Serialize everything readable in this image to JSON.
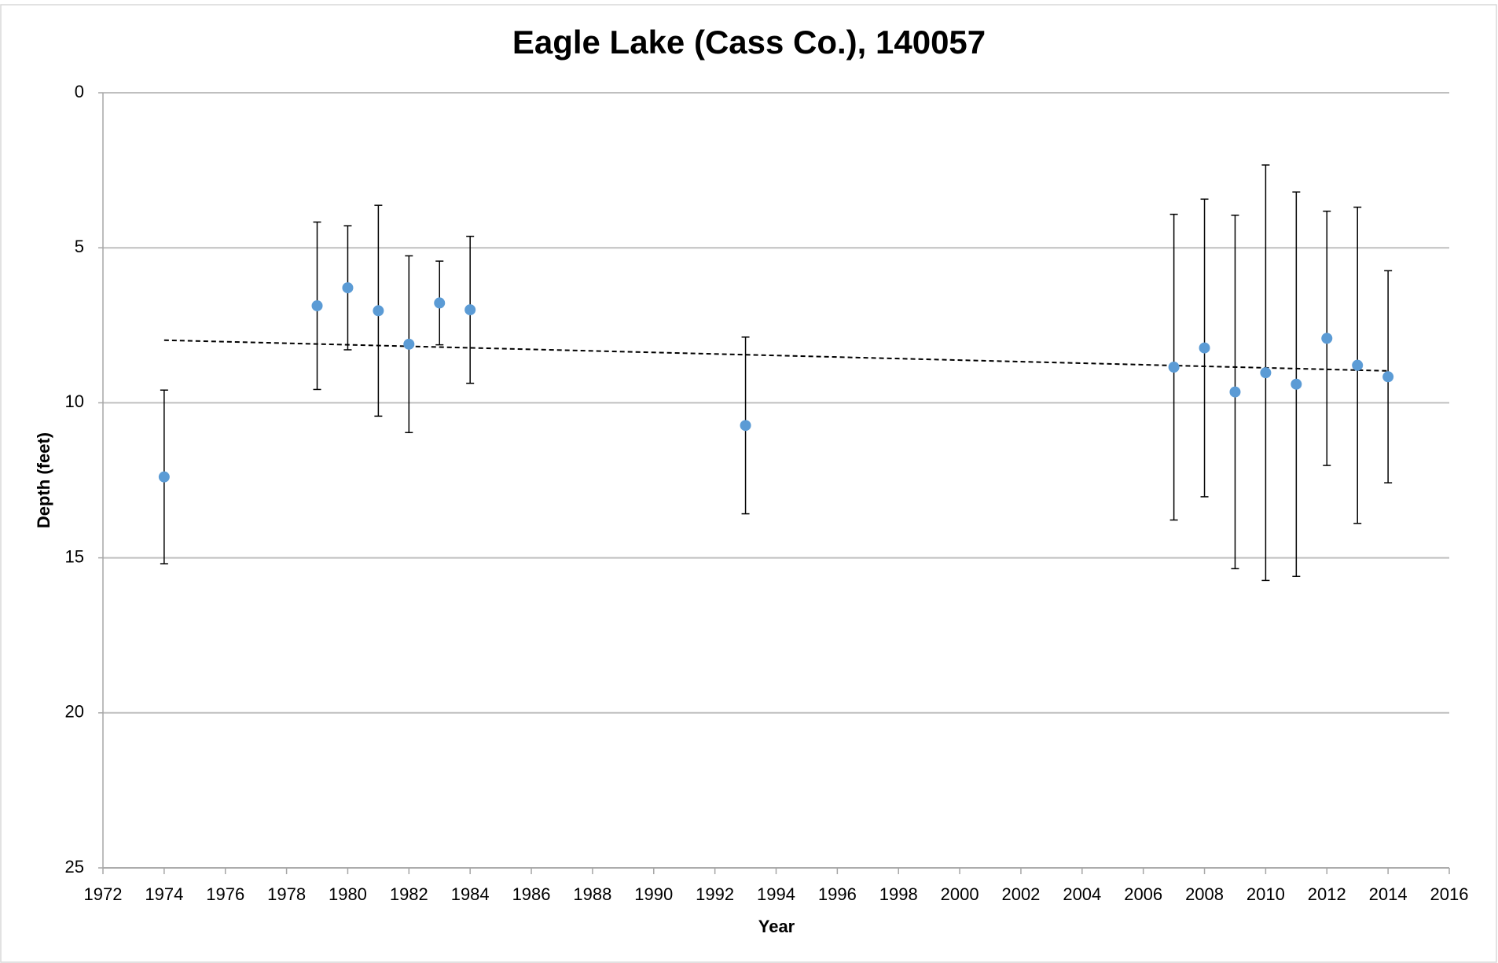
{
  "chart_data": {
    "type": "scatter",
    "title": "Eagle Lake (Cass Co.), 140057",
    "x_label": "Year",
    "y_label": "Depth (feet)",
    "x": [
      1974,
      1979,
      1980,
      1981,
      1982,
      1983,
      1984,
      1993,
      2007,
      2008,
      2009,
      2010,
      2011,
      2012,
      2013,
      2014
    ],
    "values": [
      12.39,
      6.87,
      6.29,
      7.03,
      8.11,
      6.78,
      7.0,
      10.73,
      8.85,
      8.23,
      9.65,
      9.03,
      9.4,
      7.92,
      8.79,
      9.16
    ],
    "errors": [
      2.8,
      2.7,
      2.0,
      3.4,
      2.85,
      1.35,
      2.37,
      2.85,
      4.93,
      4.8,
      5.7,
      6.7,
      6.2,
      4.1,
      5.1,
      3.42
    ],
    "color": "#5b9bd5",
    "error_color": "#000000",
    "trendline": {
      "x": [
        1974,
        2014
      ],
      "values": [
        7.98,
        8.97
      ],
      "color": "#000000",
      "dashed": true
    },
    "xlim": [
      1972,
      2016
    ],
    "xticks": [
      1972,
      1974,
      1976,
      1978,
      1980,
      1982,
      1984,
      1986,
      1988,
      1990,
      1992,
      1994,
      1996,
      1998,
      2000,
      2002,
      2004,
      2006,
      2008,
      2010,
      2012,
      2014,
      2016
    ],
    "ylim": [
      0,
      25
    ],
    "yticks": [
      0,
      5,
      10,
      15,
      20,
      25
    ],
    "y_reversed": true,
    "grid": true
  }
}
